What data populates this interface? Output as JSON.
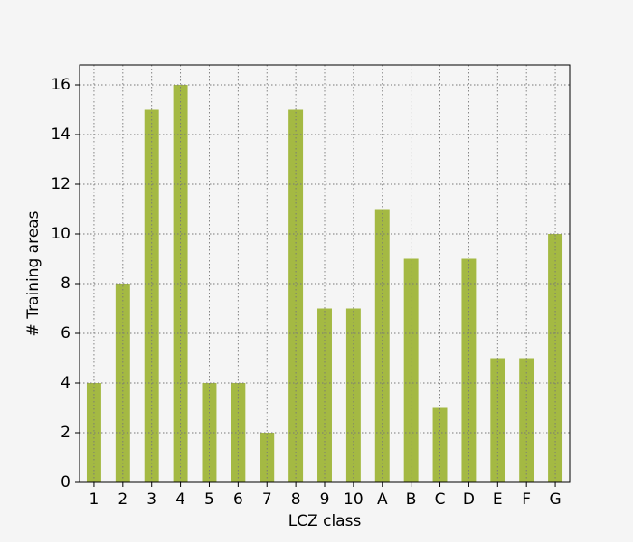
{
  "chart_data": {
    "type": "bar",
    "x_label": "LCZ class",
    "y_label": "# Training areas",
    "categories": [
      "1",
      "2",
      "3",
      "4",
      "5",
      "6",
      "7",
      "8",
      "9",
      "10",
      "A",
      "B",
      "C",
      "D",
      "E",
      "F",
      "G"
    ],
    "values": [
      4,
      8,
      15,
      16,
      4,
      4,
      2,
      15,
      7,
      7,
      11,
      9,
      3,
      9,
      5,
      5,
      10
    ],
    "color": "#a4b943",
    "ylim": [
      0,
      16.8
    ],
    "yticks": [
      0,
      2,
      4,
      6,
      8,
      10,
      12,
      14,
      16
    ],
    "grid": true
  }
}
